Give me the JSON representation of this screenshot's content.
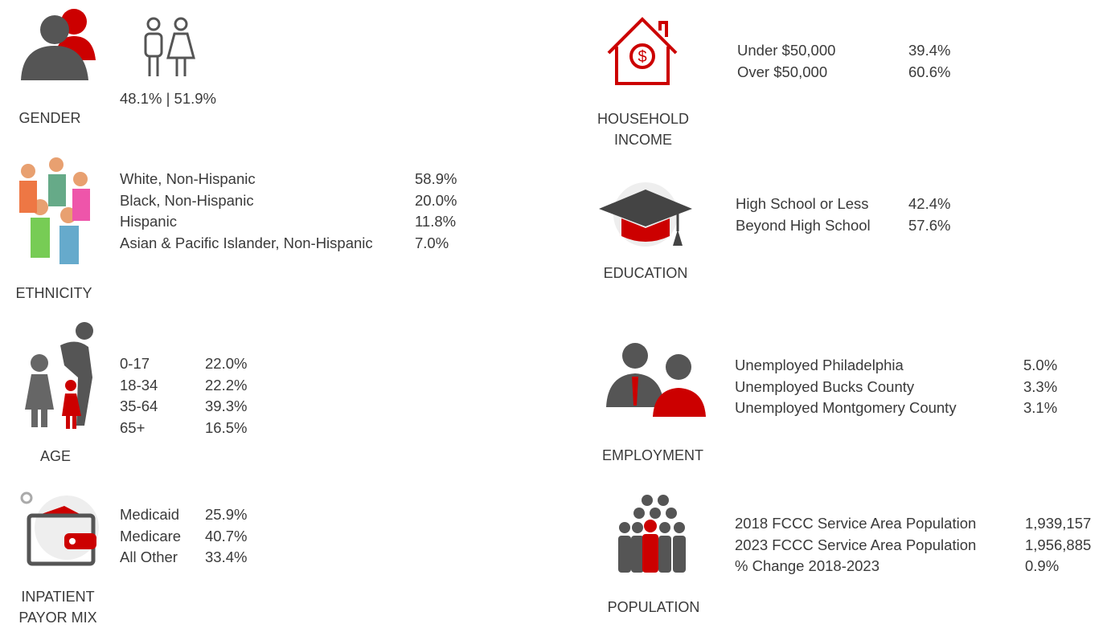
{
  "sections": [
    {
      "label": [
        "GENDER"
      ],
      "text": "48.1% | 51.9%"
    },
    {
      "label": [
        "ETHNICITY"
      ],
      "rows": [
        [
          "White, Non-Hispanic",
          "58.9%"
        ],
        [
          "Black, Non-Hispanic",
          "20.0%"
        ],
        [
          "Hispanic",
          "11.8%"
        ],
        [
          "Asian & Pacific Islander, Non-Hispanic",
          "7.0%"
        ]
      ]
    },
    {
      "label": [
        "AGE"
      ],
      "rows": [
        [
          "0-17",
          "22.0%"
        ],
        [
          "18-34",
          "22.2%"
        ],
        [
          "35-64",
          "39.3%"
        ],
        [
          "65+",
          "16.5%"
        ]
      ]
    },
    {
      "label": [
        "INPATIENT",
        "PAYOR MIX"
      ],
      "rows": [
        [
          "Medicaid",
          "25.9%"
        ],
        [
          "Medicare",
          "40.7%"
        ],
        [
          "All Other",
          "33.4%"
        ]
      ]
    },
    {
      "label": [
        "HOUSEHOLD",
        "INCOME"
      ],
      "rows": [
        [
          "Under $50,000",
          "39.4%"
        ],
        [
          "Over $50,000",
          "60.6%"
        ]
      ]
    },
    {
      "label": [
        "EDUCATION"
      ],
      "rows": [
        [
          "High School or Less",
          "42.4%"
        ],
        [
          "Beyond High School",
          "57.6%"
        ]
      ]
    },
    {
      "label": [
        "EMPLOYMENT"
      ],
      "rows": [
        [
          "Unemployed Philadelphia",
          "5.0%"
        ],
        [
          "Unemployed Bucks County",
          "3.3%"
        ],
        [
          "Unemployed Montgomery County",
          "3.1%"
        ]
      ]
    },
    {
      "label": [
        "POPULATION"
      ],
      "rows": [
        [
          "2018 FCCC Service Area Population",
          "1,939,157"
        ],
        [
          "2023 FCCC Service Area Population",
          "1,956,885"
        ],
        [
          "% Change 2018-2023",
          "0.9%"
        ]
      ]
    }
  ]
}
